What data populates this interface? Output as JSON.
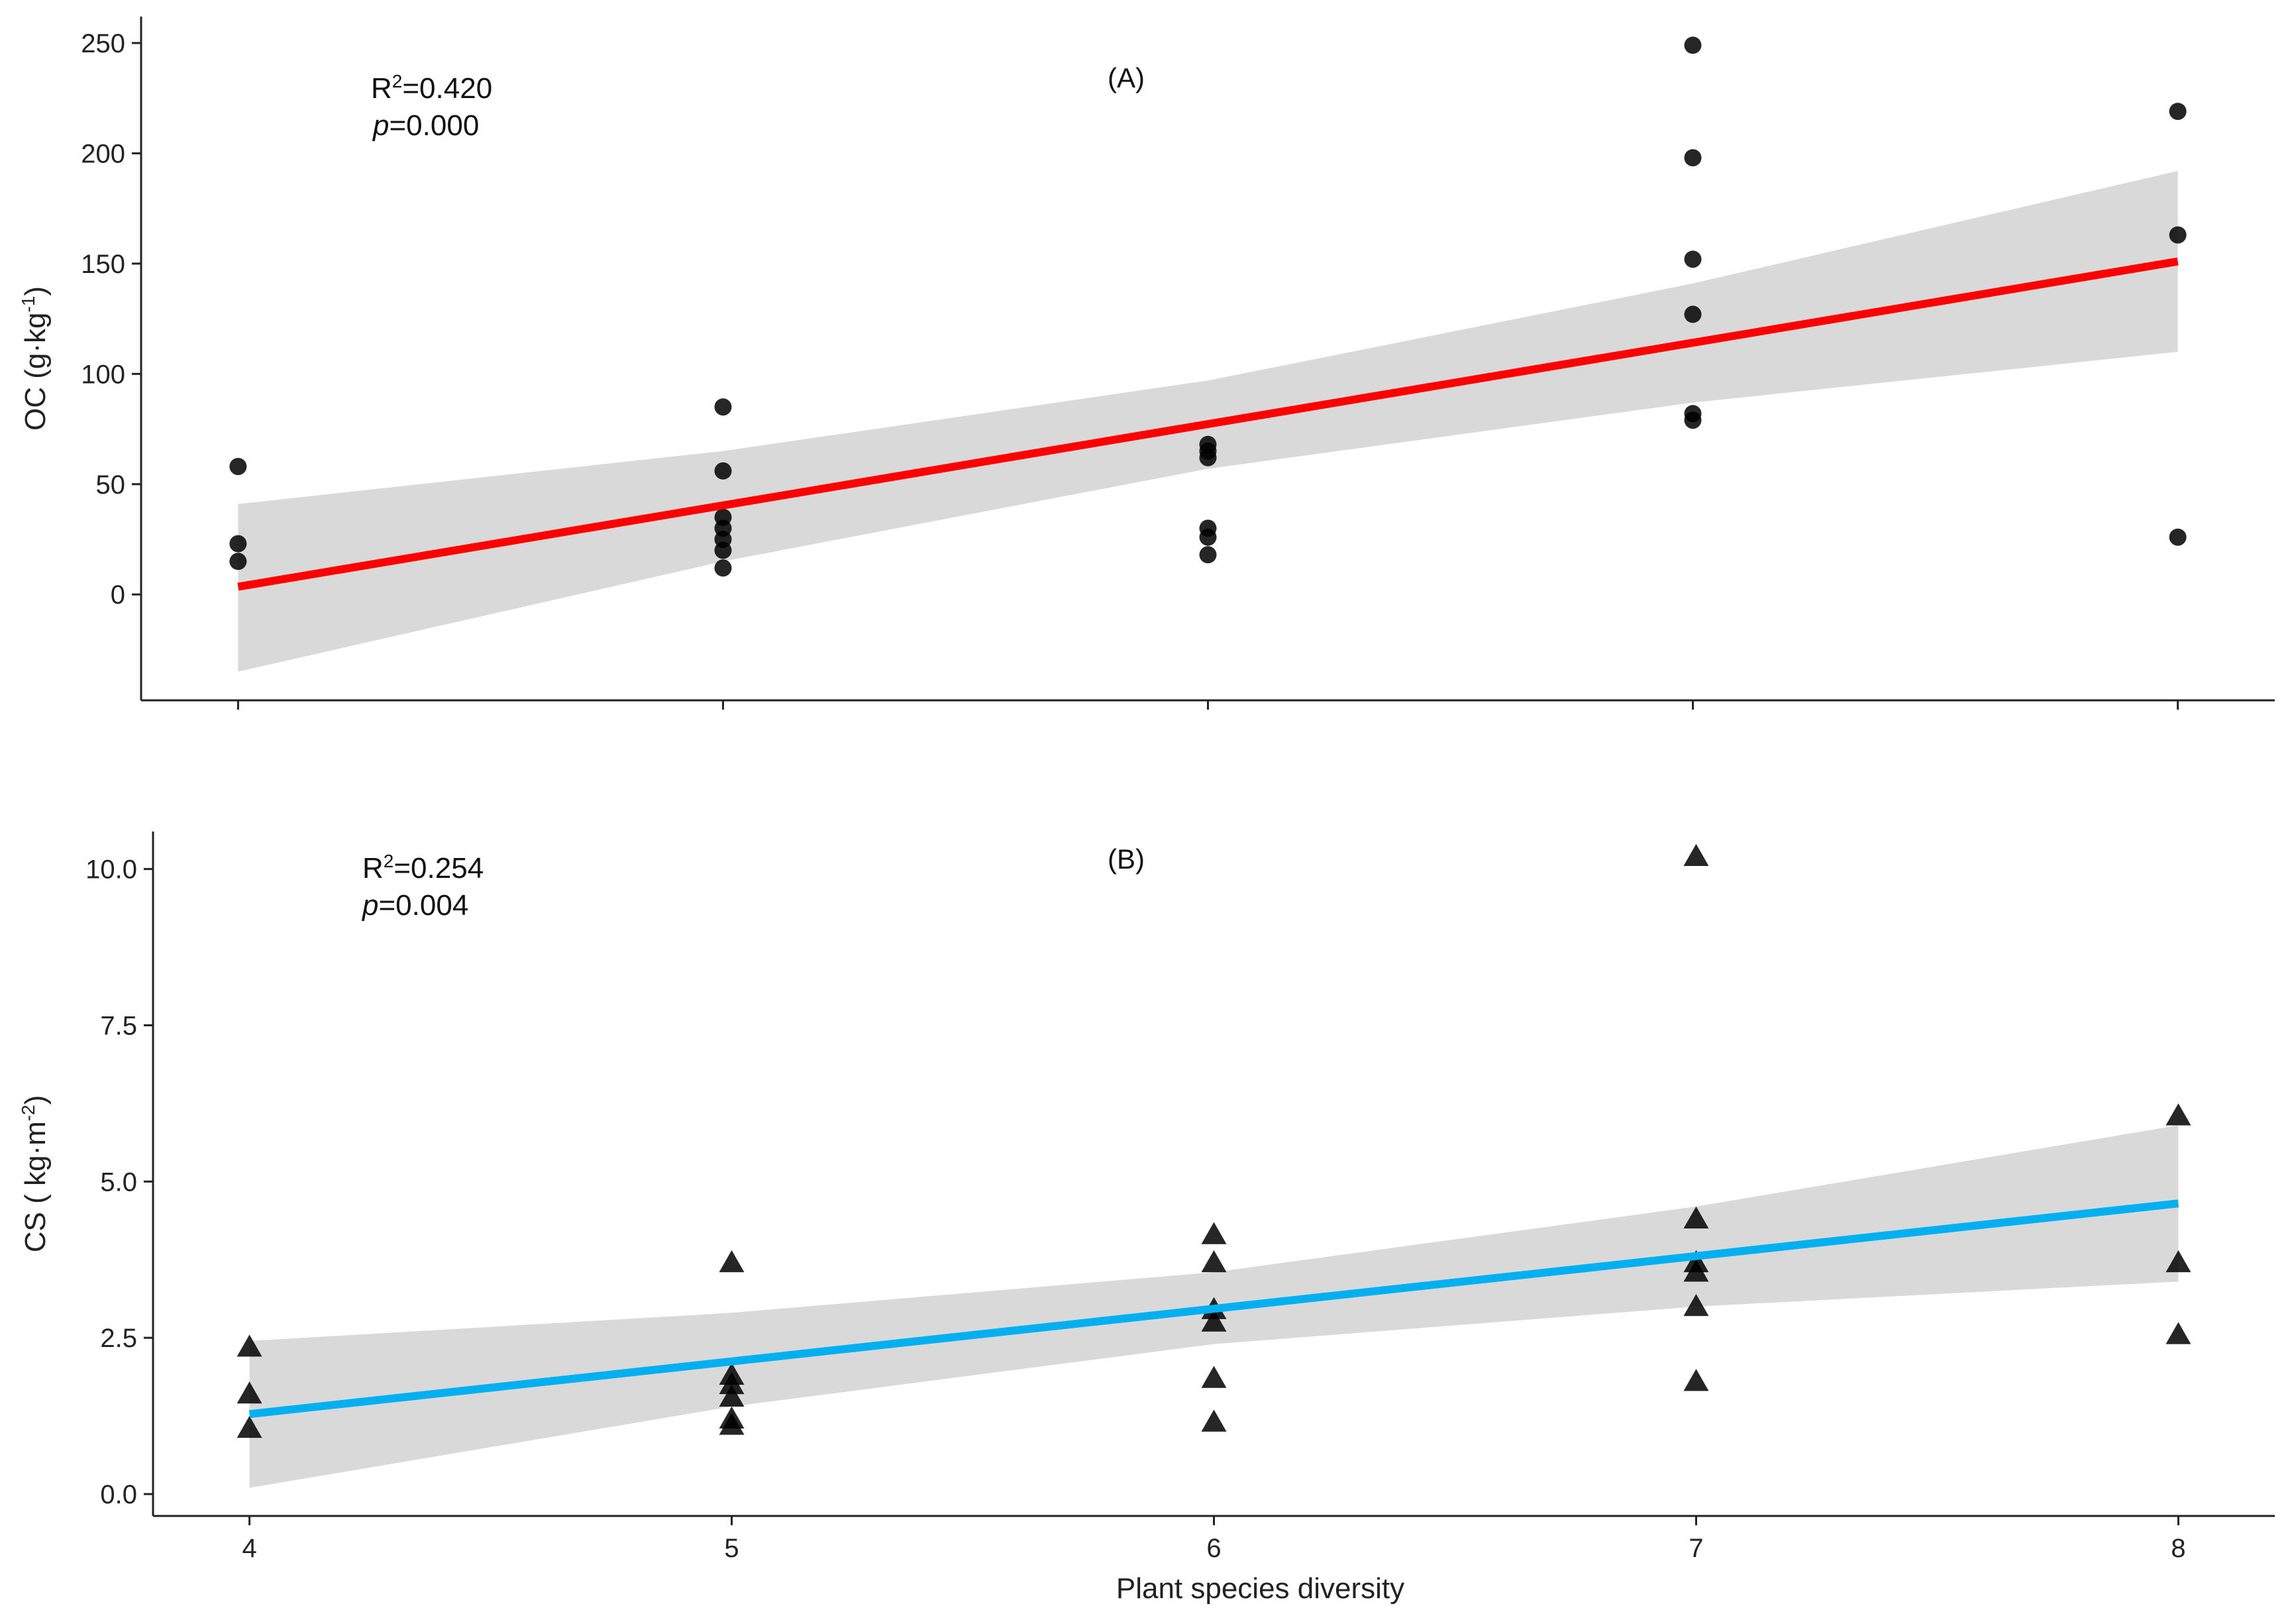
{
  "chart_data": [
    {
      "type": "scatter",
      "panel": "(A)",
      "ylabel": "OC (g·kg⁻¹)",
      "ylabel_base": "OC (g·kg",
      "ylabel_sup": "-1",
      "ylabel_end": ")",
      "xlabel": "",
      "xlim": [
        3.8,
        8.2
      ],
      "ylim": [
        -48,
        262
      ],
      "xticks": [
        4,
        5,
        6,
        7,
        8
      ],
      "yticks": [
        0,
        50,
        100,
        150,
        200,
        250
      ],
      "annotation": {
        "r2_prefix": "R",
        "r2_sup": "2",
        "r2_value": "=0.420",
        "p_italic": "p",
        "p_value": "=0.000"
      },
      "points": [
        {
          "x": 4,
          "y": 58
        },
        {
          "x": 4,
          "y": 23
        },
        {
          "x": 4,
          "y": 15
        },
        {
          "x": 5,
          "y": 85
        },
        {
          "x": 5,
          "y": 56
        },
        {
          "x": 5,
          "y": 35
        },
        {
          "x": 5,
          "y": 30
        },
        {
          "x": 5,
          "y": 25
        },
        {
          "x": 5,
          "y": 20
        },
        {
          "x": 5,
          "y": 12
        },
        {
          "x": 6,
          "y": 68
        },
        {
          "x": 6,
          "y": 65
        },
        {
          "x": 6,
          "y": 62
        },
        {
          "x": 6,
          "y": 30
        },
        {
          "x": 6,
          "y": 26
        },
        {
          "x": 6,
          "y": 18
        },
        {
          "x": 7,
          "y": 249
        },
        {
          "x": 7,
          "y": 198
        },
        {
          "x": 7,
          "y": 152
        },
        {
          "x": 7,
          "y": 127
        },
        {
          "x": 7,
          "y": 82
        },
        {
          "x": 7,
          "y": 79
        },
        {
          "x": 8,
          "y": 219
        },
        {
          "x": 8,
          "y": 163
        },
        {
          "x": 8,
          "y": 26
        }
      ],
      "fit": {
        "x": [
          4,
          8
        ],
        "y": [
          3.5,
          151
        ],
        "color": "#ff0000"
      },
      "ci": {
        "x": [
          4,
          5,
          6,
          7,
          8
        ],
        "upper": [
          41,
          65,
          97,
          141,
          192
        ],
        "lower": [
          -35,
          15,
          57,
          87,
          110
        ]
      }
    },
    {
      "type": "scatter",
      "panel": "(B)",
      "ylabel": "CS ( kg·m⁻²)",
      "ylabel_base": "CS ( kg·m",
      "ylabel_sup": "-2",
      "ylabel_end": ")",
      "xlabel": "Plant species diversity",
      "xlim": [
        3.8,
        8.2
      ],
      "ylim": [
        -0.35,
        10.6
      ],
      "xticks": [
        4,
        5,
        6,
        7,
        8
      ],
      "yticks": [
        0.0,
        2.5,
        5.0,
        7.5,
        10.0
      ],
      "ytick_labels": [
        "0.0",
        "2.5",
        "5.0",
        "7.5",
        "10.0"
      ],
      "annotation": {
        "r2_prefix": "R",
        "r2_sup": "2",
        "r2_value": "=0.254",
        "p_italic": "p",
        "p_value": "=0.004"
      },
      "points": [
        {
          "x": 4,
          "y": 2.35
        },
        {
          "x": 4,
          "y": 1.6
        },
        {
          "x": 4,
          "y": 1.05
        },
        {
          "x": 5,
          "y": 3.7
        },
        {
          "x": 5,
          "y": 1.9
        },
        {
          "x": 5,
          "y": 1.75
        },
        {
          "x": 5,
          "y": 1.55
        },
        {
          "x": 5,
          "y": 1.2
        },
        {
          "x": 5,
          "y": 1.1
        },
        {
          "x": 6,
          "y": 4.15
        },
        {
          "x": 6,
          "y": 3.7
        },
        {
          "x": 6,
          "y": 2.95
        },
        {
          "x": 6,
          "y": 2.75
        },
        {
          "x": 6,
          "y": 1.85
        },
        {
          "x": 6,
          "y": 1.15
        },
        {
          "x": 7,
          "y": 10.2
        },
        {
          "x": 7,
          "y": 4.4
        },
        {
          "x": 7,
          "y": 3.7
        },
        {
          "x": 7,
          "y": 3.55
        },
        {
          "x": 7,
          "y": 3.0
        },
        {
          "x": 7,
          "y": 1.8
        },
        {
          "x": 8,
          "y": 6.05
        },
        {
          "x": 8,
          "y": 3.7
        },
        {
          "x": 8,
          "y": 2.55
        }
      ],
      "fit": {
        "x": [
          4,
          8
        ],
        "y": [
          1.28,
          4.65
        ],
        "color": "#00b0f0"
      },
      "ci": {
        "x": [
          4,
          5,
          6,
          7,
          8
        ],
        "upper": [
          2.45,
          2.9,
          3.55,
          4.6,
          5.9
        ],
        "lower": [
          0.1,
          1.4,
          2.4,
          3.0,
          3.4
        ]
      }
    }
  ]
}
